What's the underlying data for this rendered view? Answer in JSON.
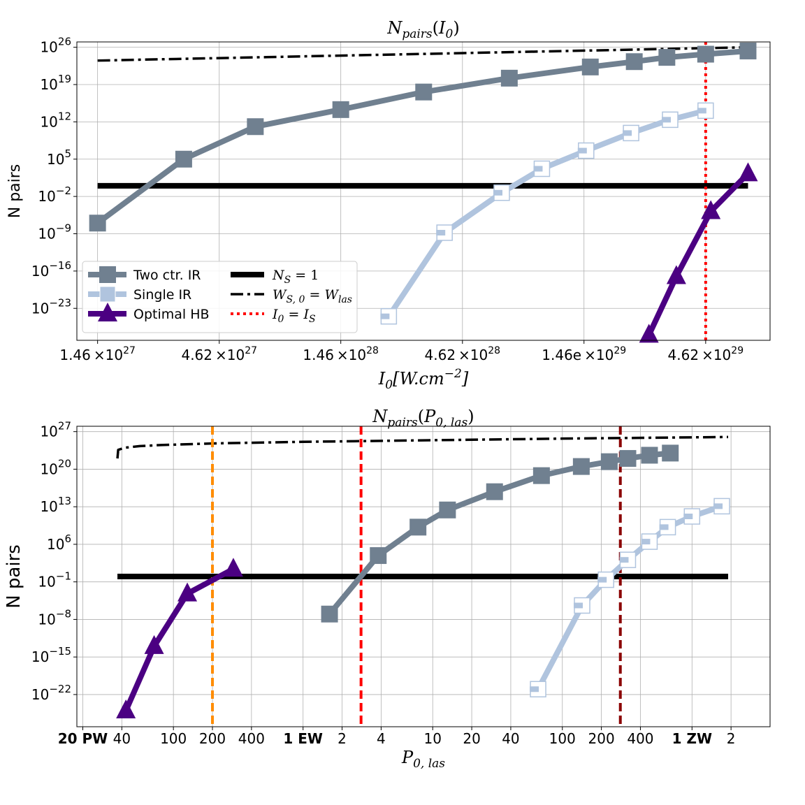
{
  "chart_data": [
    {
      "type": "line",
      "xscale": "log",
      "yscale": "log",
      "title": "N_pairs(I_0)",
      "title_parts": {
        "main": "N",
        "sub": "pairs",
        "arg": "I",
        "arg_sub": "0"
      },
      "xlabel": "I_0[W.cm^-2]",
      "xlabel_parts": {
        "main": "I",
        "sub": "0",
        "rest": "[W.cm",
        "sup": "−2",
        "close": "]"
      },
      "ylabel": "N pairs",
      "xlim": [
        1.2e+27,
        8.5e+29
      ],
      "ylim": [
        1e-29,
        1e+27
      ],
      "xticks": [
        {
          "v": 1.46e+27,
          "m": "1.46",
          "e": "27",
          "sep": "×10"
        },
        {
          "v": 4.62e+27,
          "m": "4.62",
          "e": "27",
          "sep": "×10"
        },
        {
          "v": 1.46e+28,
          "m": "1.46",
          "e": "28",
          "sep": "×10"
        },
        {
          "v": 4.62e+28,
          "m": "4.62",
          "e": "28",
          "sep": "×10"
        },
        {
          "v": 1.46e+29,
          "m": "1.46e",
          "e": "29",
          "sep": "×10"
        },
        {
          "v": 4.62e+29,
          "m": "4.62",
          "e": "29",
          "sep": "×10"
        }
      ],
      "yticks": [
        {
          "exp": 26,
          "label": "10",
          "sup": "26"
        },
        {
          "exp": 19,
          "label": "10",
          "sup": "19"
        },
        {
          "exp": 12,
          "label": "10",
          "sup": "12"
        },
        {
          "exp": 5,
          "label": "10",
          "sup": "5"
        },
        {
          "exp": -2,
          "label": "10",
          "sup": "−2"
        },
        {
          "exp": -9,
          "label": "10",
          "sup": "−9"
        },
        {
          "exp": -16,
          "label": "10",
          "sup": "−16"
        },
        {
          "exp": -23,
          "label": "10",
          "sup": "−23"
        }
      ],
      "series": [
        {
          "name": "Two ctr. IR",
          "color": "#708090",
          "marker": "square",
          "x": [
            1.46e+27,
            3.3e+27,
            6.5e+27,
            1.46e+28,
            3.2e+28,
            7.2e+28,
            1.55e+29,
            2.35e+29,
            3.2e+29,
            4.62e+29,
            6.9e+29
          ],
          "y": [
            -7.0,
            5.0,
            11.1,
            14.3,
            17.6,
            20.2,
            22.3,
            23.3,
            24.1,
            24.7,
            25.3
          ]
        },
        {
          "name": "Single IR",
          "color": "#b0c4de",
          "marker": "hollow-square",
          "x": [
            2.3e+28,
            3.9e+28,
            6.7e+28,
            9.8e+28,
            1.49e+29,
            2.28e+29,
            3.3e+29,
            4.62e+29
          ],
          "y": [
            -24.5,
            -8.8,
            -1.3,
            3.2,
            6.6,
            9.9,
            12.4,
            14.1
          ]
        },
        {
          "name": "Optimal HB",
          "color": "#4b0082",
          "marker": "triangle",
          "x": [
            2.7e+29,
            3.5e+29,
            4.85e+29,
            6.9e+29
          ],
          "y": [
            -28.0,
            -17.0,
            -4.8,
            2.3
          ]
        }
      ],
      "hlines": [
        {
          "name": "N_S = 1",
          "y": 0,
          "color": "#000000",
          "style": "solid",
          "xrange": [
            1.46e+27,
            6.9e+29
          ]
        },
        {
          "name": "W_S,0 = W_las",
          "color": "#000000",
          "style": "dashdot",
          "x": [
            1.46e+27,
            6.9e+29
          ],
          "y": [
            23.5,
            26.0
          ]
        }
      ],
      "vlines": [
        {
          "name": "I_0 = I_S",
          "x": 4.62e+29,
          "color": "#ff0000",
          "style": "dotted"
        }
      ],
      "legend": {
        "placement": "lower-left",
        "items": [
          {
            "id": "two",
            "label": "Two ctr. IR"
          },
          {
            "id": "single",
            "label": "Single IR"
          },
          {
            "id": "opt",
            "label": "Optimal HB"
          },
          {
            "id": "ns",
            "label_main": "N",
            "label_sub": "S",
            "label_rest": " = 1"
          },
          {
            "id": "ws",
            "label_main": "W",
            "label_sub": "S, 0",
            "label_mid": " = W",
            "label_sub2": "las"
          },
          {
            "id": "is",
            "label_main": "I",
            "label_sub": "0",
            "label_mid": " = I",
            "label_sub2": "S"
          }
        ]
      }
    },
    {
      "type": "line",
      "xscale": "log",
      "yscale": "log",
      "title": "N_pairs(P_0,las)",
      "title_parts": {
        "main": "N",
        "sub": "pairs",
        "arg": "P",
        "arg_sub": "0, las"
      },
      "xlabel": "P_0,las",
      "xlabel_parts": {
        "main": "P",
        "sub": "0, las"
      },
      "ylabel": "N pairs",
      "xlim": [
        1.8e+16,
        4e+21
      ],
      "ylim": [
        1e-28,
        1e+28
      ],
      "xticks": [
        {
          "v": 2e+16,
          "label": "20 PW",
          "bold": true
        },
        {
          "v": 4e+16,
          "label": "40"
        },
        {
          "v": 1e+17,
          "label": "100"
        },
        {
          "v": 2e+17,
          "label": "200"
        },
        {
          "v": 4e+17,
          "label": "400"
        },
        {
          "v": 1e+18,
          "label": "1 EW",
          "bold": true
        },
        {
          "v": 2e+18,
          "label": "2"
        },
        {
          "v": 4e+18,
          "label": "4"
        },
        {
          "v": 1e+19,
          "label": "10"
        },
        {
          "v": 2e+19,
          "label": "20"
        },
        {
          "v": 4e+19,
          "label": "40"
        },
        {
          "v": 1e+20,
          "label": "100"
        },
        {
          "v": 2e+20,
          "label": "200"
        },
        {
          "v": 4e+20,
          "label": "400"
        },
        {
          "v": 1e+21,
          "label": "1 ZW",
          "bold": true
        },
        {
          "v": 2e+21,
          "label": "2"
        }
      ],
      "yticks": [
        {
          "exp": 27,
          "label": "10",
          "sup": "27"
        },
        {
          "exp": 20,
          "label": "10",
          "sup": "20"
        },
        {
          "exp": 13,
          "label": "10",
          "sup": "13"
        },
        {
          "exp": 6,
          "label": "10",
          "sup": "6"
        },
        {
          "exp": -1,
          "label": "10",
          "sup": "−1"
        },
        {
          "exp": -8,
          "label": "10",
          "sup": "−8"
        },
        {
          "exp": -15,
          "label": "10",
          "sup": "−15"
        },
        {
          "exp": -22,
          "label": "10",
          "sup": "−22"
        }
      ],
      "series": [
        {
          "name": "Two ctr. IR",
          "color": "#708090",
          "marker": "square",
          "x": [
            1.6e+18,
            3.8e+18,
            7.7e+18,
            1.3e+19,
            3e+19,
            6.9e+19,
            1.4e+20,
            2.3e+20,
            3.2e+20,
            4.7e+20,
            6.8e+20
          ],
          "y": [
            -7.0,
            3.9,
            9.2,
            12.4,
            15.8,
            18.8,
            20.5,
            21.4,
            22.0,
            22.6,
            23.0
          ]
        },
        {
          "name": "Single IR",
          "color": "#b0c4de",
          "marker": "hollow-square",
          "x": [
            6.5e+19,
            1.42e+20,
            2.17e+20,
            3.2e+20,
            4.7e+20,
            6.5e+20,
            1e+21,
            1.7e+21
          ],
          "y": [
            -21.0,
            -5.4,
            -0.6,
            3.1,
            6.5,
            9.2,
            11.2,
            13.1
          ]
        },
        {
          "name": "Optimal HB",
          "color": "#4b0082",
          "marker": "triangle",
          "x": [
            4.3e+16,
            7.1e+16,
            1.28e+17,
            2.9e+17
          ],
          "y": [
            -25.0,
            -13.0,
            -3.2,
            1.4
          ]
        }
      ],
      "hlines": [
        {
          "name": "N_S = 1",
          "y": 0,
          "color": "#000000",
          "style": "solid",
          "xrange": [
            3.7e+16,
            1.9e+21
          ]
        },
        {
          "name": "W_S,0 = W_las",
          "color": "#000000",
          "style": "dashdot",
          "x": [
            3.7e+16,
            3.75e+16,
            4.2e+16,
            5.5e+16,
            8e+16,
            2e+17,
            1e+18,
            1e+19,
            1e+20,
            1.9e+21
          ],
          "y": [
            22.0,
            23.6,
            24.0,
            24.3,
            24.5,
            24.8,
            25.1,
            25.4,
            25.7,
            26.0
          ]
        }
      ],
      "vlines": [
        {
          "name": "orange",
          "x": 2e+17,
          "color": "#ff8c00",
          "style": "dashed"
        },
        {
          "name": "red",
          "x": 2.8e+18,
          "color": "#ff0000",
          "style": "dashed"
        },
        {
          "name": "darkred",
          "x": 2.8e+20,
          "color": "#8b0000",
          "style": "dashed"
        }
      ]
    }
  ]
}
